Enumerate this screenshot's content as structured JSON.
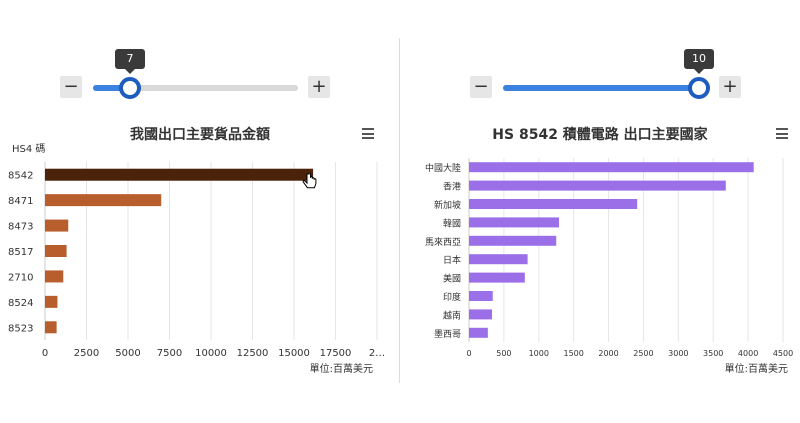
{
  "left": {
    "slider": {
      "value": "7",
      "minus": "−",
      "plus": "+"
    },
    "title": "我國出口主要貨品金額",
    "menu_icon": "hamburger-menu-icon",
    "chart_data": {
      "type": "bar",
      "orientation": "horizontal",
      "title": "我國出口主要貨品金額",
      "category_axis_title": "HS4 碼",
      "categories": [
        "8542",
        "8471",
        "8473",
        "8517",
        "2710",
        "8524",
        "8523"
      ],
      "values": [
        16150,
        7000,
        1400,
        1300,
        1100,
        750,
        700
      ],
      "colors": [
        "#4a230a",
        "#b85e2c",
        "#b85e2c",
        "#b85e2c",
        "#b85e2c",
        "#b85e2c",
        "#b85e2c"
      ],
      "x_ticks": [
        "0",
        "2500",
        "5000",
        "7500",
        "10000",
        "12500",
        "15000",
        "17500",
        "2…"
      ],
      "xlim": [
        0,
        20000
      ],
      "unit_note": "單位:百萬美元",
      "grid": true
    }
  },
  "right": {
    "slider": {
      "value": "10",
      "minus": "−",
      "plus": "+"
    },
    "title": "HS 8542 積體電路 出口主要國家",
    "menu_icon": "hamburger-menu-icon",
    "chart_data": {
      "type": "bar",
      "orientation": "horizontal",
      "title": "HS 8542 積體電路 出口主要國家",
      "categories": [
        "中國大陸",
        "香港",
        "新加坡",
        "韓國",
        "馬來西亞",
        "日本",
        "美國",
        "印度",
        "越南",
        "墨西哥"
      ],
      "values": [
        4080,
        3680,
        2410,
        1290,
        1250,
        840,
        800,
        340,
        330,
        270
      ],
      "color": "#9b6fe8",
      "x_ticks": [
        "0",
        "500",
        "1000",
        "1500",
        "2000",
        "2500",
        "3000",
        "3500",
        "4000",
        "4500"
      ],
      "xlim": [
        0,
        4500
      ],
      "unit_note": "單位:百萬美元",
      "grid": true
    }
  }
}
